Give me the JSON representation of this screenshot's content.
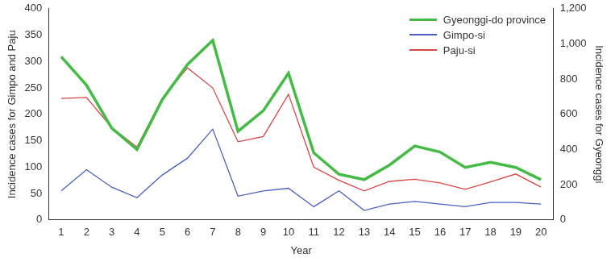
{
  "chart_data": {
    "type": "line",
    "x_label": "Year",
    "y_label": "Incidence cases for Gimpo and Paju",
    "y2_label": "Incidence cases for Gyeonggi",
    "categories": [
      "1",
      "2",
      "3",
      "4",
      "5",
      "6",
      "7",
      "8",
      "9",
      "10",
      "11",
      "12",
      "13",
      "14",
      "15",
      "16",
      "17",
      "18",
      "19",
      "20"
    ],
    "series": [
      {
        "name": "Gyeonggi-do province",
        "color": "#44bb44",
        "axis": "y2",
        "values": [
          927,
          766,
          522,
          400,
          683,
          883,
          1020,
          503,
          620,
          834,
          381,
          259,
          229,
          312,
          420,
          386,
          298,
          327,
          298,
          229
        ]
      },
      {
        "name": "Gimpo-si",
        "color": "#4a5fc1",
        "values": [
          55,
          95,
          62,
          42,
          85,
          117,
          172,
          45,
          55,
          60,
          25,
          55,
          18,
          30,
          35,
          30,
          25,
          33,
          33,
          30
        ]
      },
      {
        "name": "Paju-si",
        "color": "#d94545",
        "values": [
          230,
          232,
          175,
          138,
          230,
          288,
          250,
          148,
          158,
          238,
          100,
          75,
          55,
          73,
          77,
          70,
          58,
          72,
          87,
          62
        ]
      }
    ],
    "ylim": [
      0,
      400
    ],
    "yticks": [
      0,
      50,
      100,
      150,
      200,
      250,
      300,
      350,
      400
    ],
    "y2lim": [
      0,
      1200
    ],
    "y2ticks": [
      0,
      200,
      400,
      600,
      800,
      {
        "value": 1000,
        "label": "1,000"
      },
      {
        "value": 1200,
        "label": "1,200"
      }
    ],
    "grid": false,
    "legend": "upper right"
  }
}
